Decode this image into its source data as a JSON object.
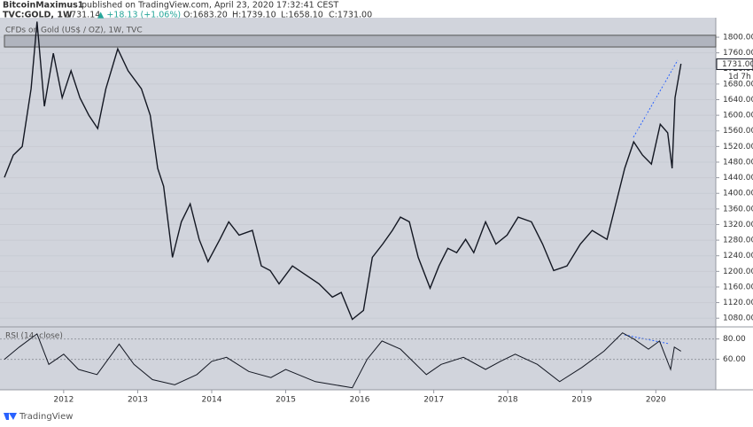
{
  "header": {
    "author": "BitcoinMaximus1",
    "published": "published on TradingView.com, April 23, 2020 17:32:41 CEST",
    "symbol": "TVC:GOLD, 1W",
    "price": "1731.14",
    "change": "▲ +18.13 (+1.06%)",
    "open": "O:1683.20",
    "high": "H:1739.10",
    "low": "L:1658.10",
    "close": "C:1731.00"
  },
  "footer": {
    "brand": "TradingView"
  },
  "chart_data": [
    {
      "type": "line",
      "title": "CFDs on Gold (US$ / OZ), 1W, TVC",
      "color": "#131722",
      "x": [
        2011.2,
        2011.32,
        2011.44,
        2011.56,
        2011.64,
        2011.74,
        2011.86,
        2011.98,
        2012.1,
        2012.22,
        2012.34,
        2012.46,
        2012.57,
        2012.73,
        2012.87,
        2013.05,
        2013.17,
        2013.27,
        2013.35,
        2013.47,
        2013.59,
        2013.71,
        2013.83,
        2013.95,
        2014.11,
        2014.23,
        2014.37,
        2014.55,
        2014.67,
        2014.79,
        2014.91,
        2015.09,
        2015.27,
        2015.45,
        2015.63,
        2015.75,
        2015.9,
        2016.05,
        2016.17,
        2016.31,
        2016.44,
        2016.55,
        2016.67,
        2016.79,
        2016.95,
        2017.07,
        2017.19,
        2017.31,
        2017.43,
        2017.54,
        2017.7,
        2017.84,
        2017.99,
        2018.14,
        2018.32,
        2018.47,
        2018.62,
        2018.8,
        2018.98,
        2019.14,
        2019.34,
        2019.46,
        2019.58,
        2019.7,
        2019.82,
        2019.94,
        2020.06,
        2020.16,
        2020.22,
        2020.26,
        2020.34
      ],
      "values": [
        1441,
        1498,
        1520,
        1668,
        1840,
        1623,
        1759,
        1645,
        1714,
        1645,
        1600,
        1566,
        1668,
        1770,
        1714,
        1668,
        1600,
        1464,
        1418,
        1236,
        1327,
        1373,
        1282,
        1225,
        1282,
        1327,
        1293,
        1305,
        1214,
        1202,
        1168,
        1214,
        1191,
        1168,
        1134,
        1146,
        1077,
        1100,
        1236,
        1270,
        1305,
        1339,
        1327,
        1236,
        1157,
        1214,
        1259,
        1248,
        1282,
        1248,
        1327,
        1270,
        1293,
        1339,
        1327,
        1270,
        1202,
        1214,
        1270,
        1305,
        1282,
        1373,
        1464,
        1532,
        1498,
        1475,
        1577,
        1555,
        1464,
        1645,
        1732
      ],
      "xlim": [
        2011.14,
        2020.81
      ],
      "xticks": [
        2012,
        2013,
        2014,
        2015,
        2016,
        2017,
        2018,
        2019,
        2020
      ],
      "ylim": [
        1060,
        1850
      ],
      "yticks": [
        {
          "value": 1080,
          "label": "1080.00"
        },
        {
          "value": 1120,
          "label": "1120.00"
        },
        {
          "value": 1160,
          "label": "1160.00"
        },
        {
          "value": 1200,
          "label": "1200.00"
        },
        {
          "value": 1240,
          "label": "1240.00"
        },
        {
          "value": 1280,
          "label": "1280.00"
        },
        {
          "value": 1320,
          "label": "1320.00"
        },
        {
          "value": 1360,
          "label": "1360.00"
        },
        {
          "value": 1400,
          "label": "1400.00"
        },
        {
          "value": 1440,
          "label": "1440.00"
        },
        {
          "value": 1480,
          "label": "1480.00"
        },
        {
          "value": 1520,
          "label": "1520.00"
        },
        {
          "value": 1560,
          "label": "1560.00"
        },
        {
          "value": 1600,
          "label": "1600.00"
        },
        {
          "value": 1640,
          "label": "1640.00"
        },
        {
          "value": 1680,
          "label": "1680.00"
        },
        {
          "value": 1720,
          "label": "1720.00"
        },
        {
          "value": 1760,
          "label": "1760.00"
        },
        {
          "value": 1800,
          "label": "1800.00"
        }
      ],
      "zone": [
        1775,
        1805
      ],
      "last_price": {
        "value": 1731,
        "label": "1731.00"
      },
      "countdown": "1d 7h"
    },
    {
      "type": "line",
      "title": "RSI (14, close)",
      "color": "#131722",
      "x": [
        2011.2,
        2011.4,
        2011.64,
        2011.8,
        2012.0,
        2012.2,
        2012.45,
        2012.75,
        2012.95,
        2013.2,
        2013.5,
        2013.8,
        2014.0,
        2014.2,
        2014.5,
        2014.8,
        2015.0,
        2015.4,
        2015.9,
        2016.1,
        2016.3,
        2016.55,
        2016.9,
        2017.1,
        2017.4,
        2017.7,
        2017.9,
        2018.1,
        2018.4,
        2018.7,
        2019.0,
        2019.3,
        2019.55,
        2019.7,
        2019.9,
        2020.05,
        2020.2,
        2020.25,
        2020.34
      ],
      "values": [
        60,
        72,
        85,
        55,
        65,
        50,
        45,
        75,
        55,
        40,
        35,
        45,
        58,
        62,
        48,
        42,
        50,
        38,
        32,
        60,
        78,
        70,
        45,
        55,
        62,
        50,
        58,
        65,
        55,
        38,
        52,
        68,
        86,
        80,
        70,
        78,
        50,
        72,
        68
      ],
      "xlim": [
        2011.14,
        2020.81
      ],
      "ylim": [
        30,
        91
      ],
      "yticks": [
        {
          "value": 60,
          "label": "60.00"
        },
        {
          "value": 80,
          "label": "80.00"
        }
      ]
    }
  ]
}
